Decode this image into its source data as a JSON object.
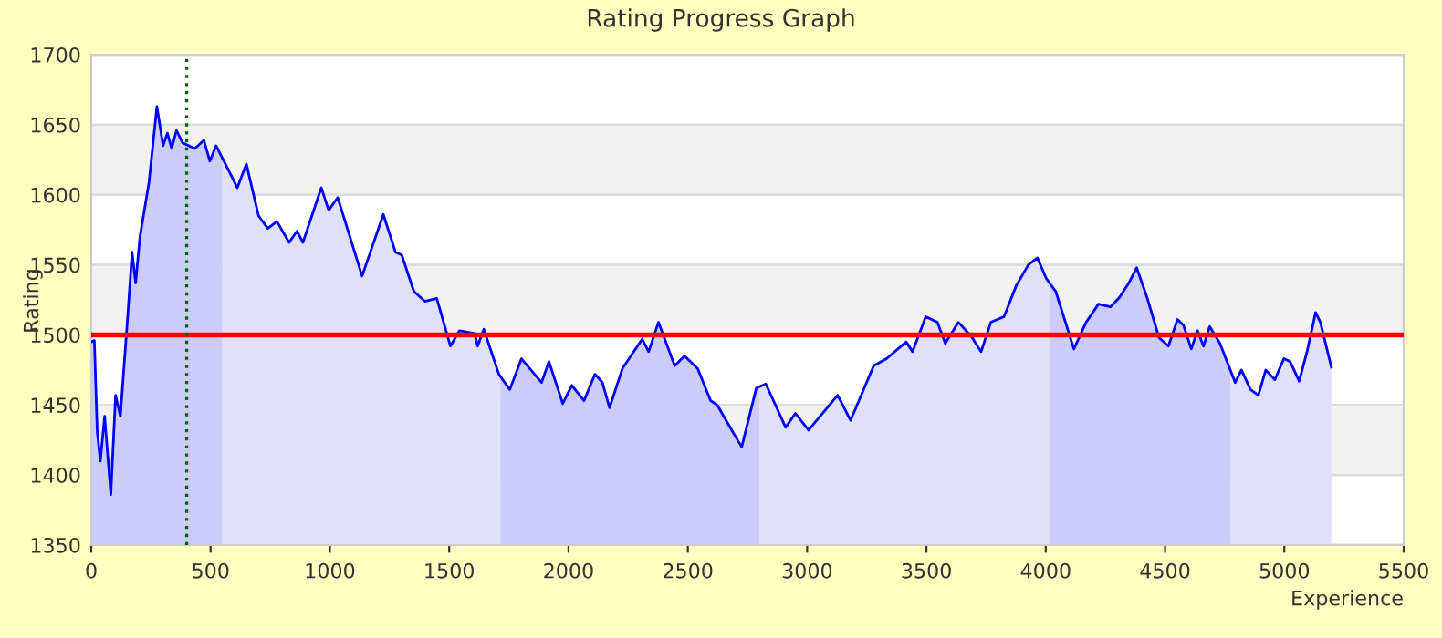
{
  "chart_data": {
    "type": "line",
    "title": "Rating Progress Graph",
    "xlabel": "Experience",
    "ylabel": "Rating",
    "xlim": [
      0,
      5500
    ],
    "xticks": [
      0,
      500,
      1000,
      1500,
      2000,
      2500,
      3000,
      3500,
      4000,
      4500,
      5000,
      5500
    ],
    "ylim": [
      1350,
      1700
    ],
    "yticks": [
      1350,
      1400,
      1450,
      1500,
      1550,
      1600,
      1650,
      1700
    ],
    "grid": "y",
    "legend": false,
    "marker": "none",
    "line_style": "solid",
    "series": [
      {
        "type": "area",
        "color": "#ccccf8",
        "x": [
          0,
          13,
          25,
          38,
          56,
          82,
          102,
          122,
          153,
          171,
          186,
          204,
          242,
          275,
          301,
          319,
          337,
          357,
          383,
          434,
          472,
          497,
          523,
          550
        ],
        "values": [
          1495,
          1496,
          1431,
          1410,
          1442,
          1386,
          1457,
          1442,
          1514,
          1559,
          1537,
          1570,
          1609,
          1663,
          1635,
          1644,
          1633,
          1646,
          1637,
          1633,
          1639,
          1624,
          1635,
          1626
        ]
      },
      {
        "type": "area",
        "color": "#e0e0f8",
        "x": [
          550,
          574,
          612,
          650,
          701,
          740,
          778,
          829,
          862,
          887,
          964,
          995,
          1033,
          1135,
          1224,
          1275,
          1301,
          1352,
          1398,
          1448,
          1505,
          1543,
          1607,
          1619,
          1645,
          1708,
          1714
        ],
        "values": [
          1626,
          1618,
          1605,
          1622,
          1585,
          1576,
          1581,
          1566,
          1574,
          1566,
          1605,
          1589,
          1598,
          1542,
          1586,
          1559,
          1557,
          1531,
          1524,
          1526,
          1492,
          1503,
          1501,
          1492,
          1504,
          1472,
          1471
        ]
      },
      {
        "type": "area",
        "color": "#ccccf8",
        "x": [
          1714,
          1754,
          1803,
          1887,
          1918,
          1976,
          2014,
          2065,
          2111,
          2142,
          2172,
          2226,
          2309,
          2336,
          2377,
          2445,
          2486,
          2541,
          2596,
          2623,
          2691,
          2726,
          2787,
          2800
        ],
        "values": [
          1471,
          1461,
          1483,
          1466,
          1481,
          1451,
          1464,
          1453,
          1472,
          1466,
          1448,
          1476,
          1497,
          1488,
          1509,
          1478,
          1485,
          1476,
          1453,
          1450,
          1430,
          1420,
          1462,
          1463
        ]
      },
      {
        "type": "area",
        "color": "#e0e0f8",
        "x": [
          2800,
          2827,
          2910,
          2951,
          3006,
          3128,
          3182,
          3279,
          3333,
          3415,
          3442,
          3497,
          3546,
          3579,
          3634,
          3688,
          3729,
          3770,
          3825,
          3876,
          3927,
          3965,
          4003,
          4016
        ],
        "values": [
          1463,
          1465,
          1434,
          1444,
          1432,
          1457,
          1439,
          1478,
          1483,
          1495,
          1488,
          1513,
          1509,
          1494,
          1509,
          1499,
          1488,
          1509,
          1513,
          1535,
          1550,
          1555,
          1540,
          1537
        ]
      },
      {
        "type": "area",
        "color": "#ccccf8",
        "x": [
          4016,
          4042,
          4118,
          4169,
          4221,
          4271,
          4310,
          4348,
          4381,
          4424,
          4475,
          4514,
          4552,
          4577,
          4610,
          4636,
          4661,
          4687,
          4730,
          4774
        ],
        "values": [
          1537,
          1531,
          1490,
          1509,
          1522,
          1520,
          1527,
          1537,
          1548,
          1527,
          1498,
          1492,
          1511,
          1507,
          1490,
          1503,
          1492,
          1506,
          1494,
          1475
        ]
      },
      {
        "type": "area",
        "color": "#e0e0f8",
        "x": [
          4774,
          4794,
          4820,
          4858,
          4891,
          4922,
          4960,
          4998,
          5024,
          5062,
          5095,
          5131,
          5151,
          5197
        ],
        "values": [
          1475,
          1466,
          1475,
          1461,
          1457,
          1475,
          1468,
          1483,
          1481,
          1467,
          1488,
          1516,
          1509,
          1477
        ]
      },
      {
        "color": "#0000ff",
        "x": [
          0,
          13,
          25,
          38,
          56,
          82,
          102,
          122,
          153,
          171,
          186,
          204,
          242,
          275,
          301,
          319,
          337,
          357,
          383,
          434,
          472,
          497,
          523,
          574,
          612,
          650,
          701,
          740,
          778,
          829,
          862,
          887,
          964,
          995,
          1033,
          1135,
          1224,
          1275,
          1301,
          1352,
          1398,
          1448,
          1505,
          1543,
          1607,
          1619,
          1645,
          1708,
          1754,
          1803,
          1887,
          1918,
          1976,
          2014,
          2065,
          2111,
          2142,
          2172,
          2226,
          2309,
          2336,
          2377,
          2445,
          2486,
          2541,
          2596,
          2623,
          2691,
          2726,
          2787,
          2827,
          2910,
          2951,
          3006,
          3128,
          3182,
          3279,
          3333,
          3415,
          3442,
          3497,
          3546,
          3579,
          3634,
          3688,
          3729,
          3770,
          3825,
          3876,
          3927,
          3965,
          4003,
          4042,
          4118,
          4169,
          4221,
          4271,
          4310,
          4348,
          4381,
          4424,
          4475,
          4514,
          4552,
          4577,
          4610,
          4636,
          4661,
          4687,
          4730,
          4794,
          4820,
          4858,
          4891,
          4922,
          4960,
          4998,
          5024,
          5062,
          5095,
          5131,
          5151,
          5197
        ],
        "values": [
          1495,
          1496,
          1431,
          1410,
          1442,
          1386,
          1457,
          1442,
          1514,
          1559,
          1537,
          1570,
          1609,
          1663,
          1635,
          1644,
          1633,
          1646,
          1637,
          1633,
          1639,
          1624,
          1635,
          1618,
          1605,
          1622,
          1585,
          1576,
          1581,
          1566,
          1574,
          1566,
          1605,
          1589,
          1598,
          1542,
          1586,
          1559,
          1557,
          1531,
          1524,
          1526,
          1492,
          1503,
          1501,
          1492,
          1504,
          1472,
          1461,
          1483,
          1466,
          1481,
          1451,
          1464,
          1453,
          1472,
          1466,
          1448,
          1476,
          1497,
          1488,
          1509,
          1478,
          1485,
          1476,
          1453,
          1450,
          1430,
          1420,
          1462,
          1465,
          1434,
          1444,
          1432,
          1457,
          1439,
          1478,
          1483,
          1495,
          1488,
          1513,
          1509,
          1494,
          1509,
          1499,
          1488,
          1509,
          1513,
          1535,
          1550,
          1555,
          1540,
          1531,
          1490,
          1509,
          1522,
          1520,
          1527,
          1537,
          1548,
          1527,
          1498,
          1492,
          1511,
          1507,
          1490,
          1503,
          1492,
          1506,
          1494,
          1466,
          1475,
          1461,
          1457,
          1475,
          1468,
          1483,
          1481,
          1467,
          1488,
          1516,
          1509,
          1477
        ]
      }
    ],
    "ref_lines": [
      {
        "axis": "y",
        "value": 1500,
        "color": "#ff0000",
        "line_style": "solid"
      },
      {
        "axis": "x",
        "value": 400,
        "color": "#006600",
        "line_style": "dotted"
      }
    ]
  }
}
